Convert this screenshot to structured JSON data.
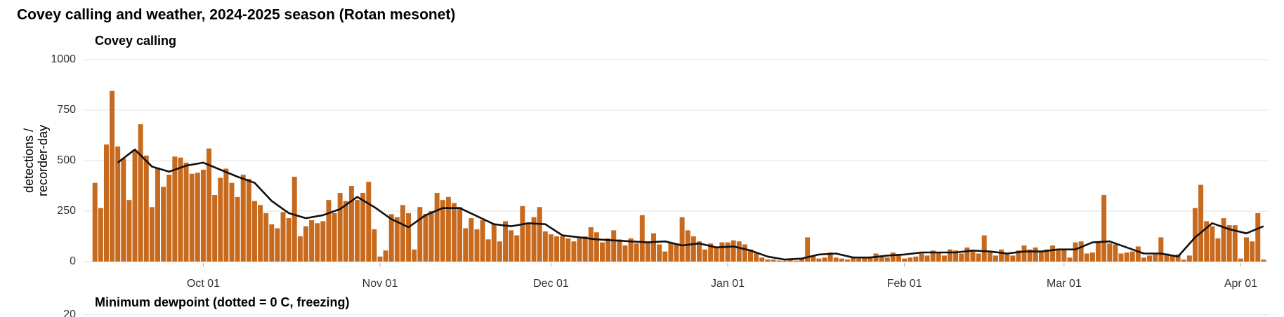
{
  "title": "Covey calling and weather, 2024-2025 season (Rotan mesonet)",
  "chart_data": [
    {
      "type": "bar",
      "title": "Covey calling",
      "ylabel": [
        "detections /",
        "recorder-day"
      ],
      "color": "#c86a1e",
      "grid": true,
      "xlim": [
        -2,
        206
      ],
      "ylim": [
        0,
        1000
      ],
      "yticks": [
        0,
        250,
        500,
        750,
        1000
      ],
      "xticks": [
        {
          "value": 19,
          "label": "Oct 01"
        },
        {
          "value": 50,
          "label": "Nov 01"
        },
        {
          "value": 80,
          "label": "Dec 01"
        },
        {
          "value": 111,
          "label": "Jan 01"
        },
        {
          "value": 142,
          "label": "Feb 01"
        },
        {
          "value": 170,
          "label": "Mar 01"
        },
        {
          "value": 201,
          "label": "Apr 01"
        }
      ],
      "x": [
        0,
        1,
        2,
        3,
        4,
        5,
        6,
        7,
        8,
        9,
        10,
        11,
        12,
        13,
        14,
        15,
        16,
        17,
        18,
        19,
        20,
        21,
        22,
        23,
        24,
        25,
        26,
        27,
        28,
        29,
        30,
        31,
        32,
        33,
        34,
        35,
        36,
        37,
        38,
        39,
        40,
        41,
        42,
        43,
        44,
        45,
        46,
        47,
        48,
        49,
        50,
        51,
        52,
        53,
        54,
        55,
        56,
        57,
        58,
        59,
        60,
        61,
        62,
        63,
        64,
        65,
        66,
        67,
        68,
        69,
        70,
        71,
        72,
        73,
        74,
        75,
        76,
        77,
        78,
        79,
        80,
        81,
        82,
        83,
        84,
        85,
        86,
        87,
        88,
        89,
        90,
        91,
        92,
        93,
        94,
        95,
        96,
        97,
        98,
        99,
        100,
        101,
        102,
        103,
        104,
        105,
        106,
        107,
        108,
        109,
        110,
        111,
        112,
        113,
        114,
        115,
        116,
        117,
        118,
        119,
        120,
        121,
        122,
        123,
        124,
        125,
        126,
        127,
        128,
        129,
        130,
        131,
        132,
        133,
        134,
        135,
        136,
        137,
        138,
        139,
        140,
        141,
        142,
        143,
        144,
        145,
        146,
        147,
        148,
        149,
        150,
        151,
        152,
        153,
        154,
        155,
        156,
        157,
        158,
        159,
        160,
        161,
        162,
        163,
        164,
        165,
        166,
        167,
        168,
        169,
        170,
        171,
        172,
        173,
        174,
        175,
        176,
        177,
        178,
        179,
        180,
        181,
        182,
        183,
        184,
        185,
        186,
        187,
        188,
        189,
        190,
        191,
        192,
        193,
        194,
        195,
        196,
        197,
        198,
        199,
        200,
        201,
        202,
        203,
        204,
        205
      ],
      "values": [
        390,
        265,
        580,
        845,
        570,
        510,
        305,
        550,
        680,
        525,
        270,
        465,
        370,
        430,
        520,
        515,
        490,
        435,
        440,
        455,
        560,
        330,
        415,
        460,
        390,
        320,
        430,
        410,
        300,
        280,
        240,
        185,
        165,
        245,
        215,
        420,
        125,
        175,
        205,
        190,
        200,
        305,
        240,
        340,
        300,
        375,
        305,
        340,
        395,
        160,
        25,
        55,
        235,
        220,
        280,
        240,
        60,
        270,
        235,
        250,
        340,
        305,
        320,
        290,
        270,
        165,
        215,
        160,
        205,
        110,
        185,
        100,
        200,
        155,
        130,
        275,
        185,
        220,
        270,
        150,
        135,
        125,
        125,
        115,
        100,
        115,
        125,
        170,
        145,
        95,
        115,
        155,
        110,
        80,
        115,
        90,
        230,
        100,
        140,
        85,
        50,
        95,
        90,
        220,
        155,
        125,
        100,
        60,
        90,
        75,
        95,
        95,
        105,
        100,
        85,
        60,
        45,
        20,
        10,
        10,
        5,
        5,
        10,
        5,
        15,
        120,
        30,
        15,
        20,
        45,
        20,
        15,
        10,
        25,
        15,
        20,
        25,
        40,
        30,
        20,
        45,
        30,
        15,
        20,
        25,
        40,
        30,
        55,
        45,
        30,
        60,
        55,
        40,
        70,
        55,
        40,
        130,
        45,
        30,
        60,
        40,
        30,
        55,
        80,
        60,
        70,
        50,
        60,
        80,
        55,
        60,
        20,
        95,
        100,
        40,
        45,
        95,
        330,
        90,
        85,
        40,
        45,
        50,
        75,
        20,
        30,
        35,
        120,
        40,
        30,
        35,
        10,
        30,
        265,
        380,
        200,
        175,
        115,
        215,
        180,
        180,
        15,
        120,
        100,
        240,
        10
      ],
      "line": {
        "color": "#111111",
        "x": [
          4,
          7,
          10,
          13,
          16,
          19,
          22,
          25,
          28,
          31,
          34,
          37,
          40,
          43,
          46,
          49,
          52,
          55,
          58,
          61,
          64,
          67,
          70,
          73,
          76,
          79,
          82,
          85,
          88,
          91,
          94,
          97,
          100,
          103,
          106,
          109,
          112,
          115,
          118,
          121,
          124,
          127,
          130,
          133,
          136,
          139,
          142,
          145,
          148,
          151,
          154,
          157,
          160,
          163,
          166,
          169,
          172,
          175,
          178,
          181,
          184,
          187,
          190,
          193,
          196,
          199,
          202,
          205
        ],
        "values": [
          490,
          555,
          470,
          445,
          475,
          490,
          455,
          420,
          390,
          300,
          240,
          215,
          230,
          260,
          320,
          270,
          210,
          170,
          230,
          265,
          265,
          225,
          185,
          175,
          190,
          185,
          130,
          120,
          110,
          105,
          100,
          95,
          100,
          80,
          90,
          70,
          75,
          55,
          25,
          10,
          15,
          35,
          40,
          20,
          20,
          30,
          35,
          45,
          45,
          45,
          55,
          50,
          40,
          50,
          50,
          60,
          60,
          95,
          100,
          70,
          40,
          40,
          25,
          120,
          190,
          160,
          140,
          175
        ]
      }
    },
    {
      "type": "line",
      "title": "Minimum dewpoint (dotted = 0 C, freezing)",
      "ylim": [
        -20,
        20
      ],
      "yticks": [
        20
      ],
      "grid": true
    }
  ]
}
